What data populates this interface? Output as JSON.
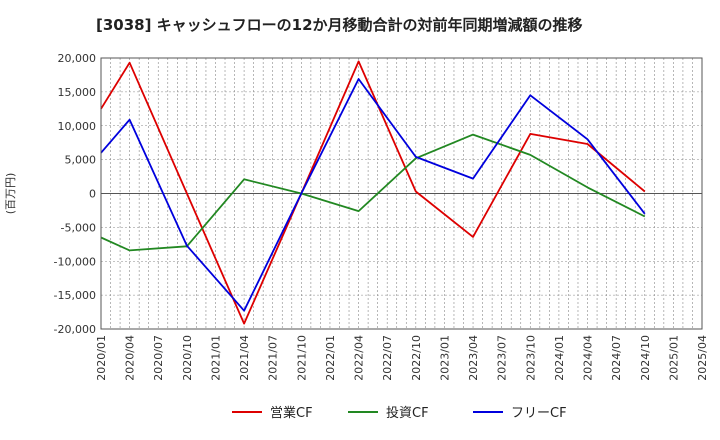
{
  "chart_data": {
    "type": "line",
    "title": "[3038]  キャッシュフローの12か月移動合計の対前年同期増減額の推移",
    "ylabel": "(百万円)",
    "xlabel": "",
    "ylim": [
      -20000,
      20000
    ],
    "yticks": [
      20000,
      15000,
      10000,
      5000,
      0,
      -5000,
      -10000,
      -15000,
      -20000
    ],
    "ytick_labels": [
      "20,000",
      "15,000",
      "10,000",
      "5,000",
      "0",
      "-5,000",
      "-10,000",
      "-15,000",
      "-20,000"
    ],
    "xtick_labels": [
      "2020/01",
      "2020/04",
      "2020/07",
      "2020/10",
      "2021/01",
      "2021/04",
      "2021/07",
      "2021/10",
      "2022/01",
      "2022/04",
      "2022/07",
      "2022/10",
      "2023/01",
      "2023/04",
      "2023/07",
      "2023/10",
      "2024/01",
      "2024/04",
      "2024/07",
      "2024/10",
      "2025/01",
      "2025/04"
    ],
    "grid": true,
    "legend_position": "bottom",
    "series": [
      {
        "name": "営業CF",
        "color": "#dd0000",
        "x": [
          "2020/01",
          "2020/04",
          "2020/10",
          "2021/04",
          "2021/10",
          "2022/04",
          "2022/10",
          "2023/04",
          "2023/10",
          "2024/04",
          "2024/10"
        ],
        "values": [
          12500,
          19300,
          0,
          -19200,
          0,
          19500,
          300,
          -6400,
          8800,
          7300,
          300
        ]
      },
      {
        "name": "投資CF",
        "color": "#228822",
        "x": [
          "2020/01",
          "2020/04",
          "2020/10",
          "2021/04",
          "2021/10",
          "2022/04",
          "2022/10",
          "2023/04",
          "2023/10",
          "2024/04",
          "2024/10"
        ],
        "values": [
          -6500,
          -8400,
          -7800,
          2100,
          0,
          -2600,
          5200,
          8700,
          5700,
          900,
          -3400
        ]
      },
      {
        "name": "フリーCF",
        "color": "#0000dd",
        "x": [
          "2020/01",
          "2020/04",
          "2020/10",
          "2021/04",
          "2021/10",
          "2022/04",
          "2022/10",
          "2023/04",
          "2023/10",
          "2024/04",
          "2024/10"
        ],
        "values": [
          6000,
          10900,
          -7700,
          -17300,
          0,
          16900,
          5400,
          2200,
          14500,
          8000,
          -3000
        ]
      }
    ]
  }
}
